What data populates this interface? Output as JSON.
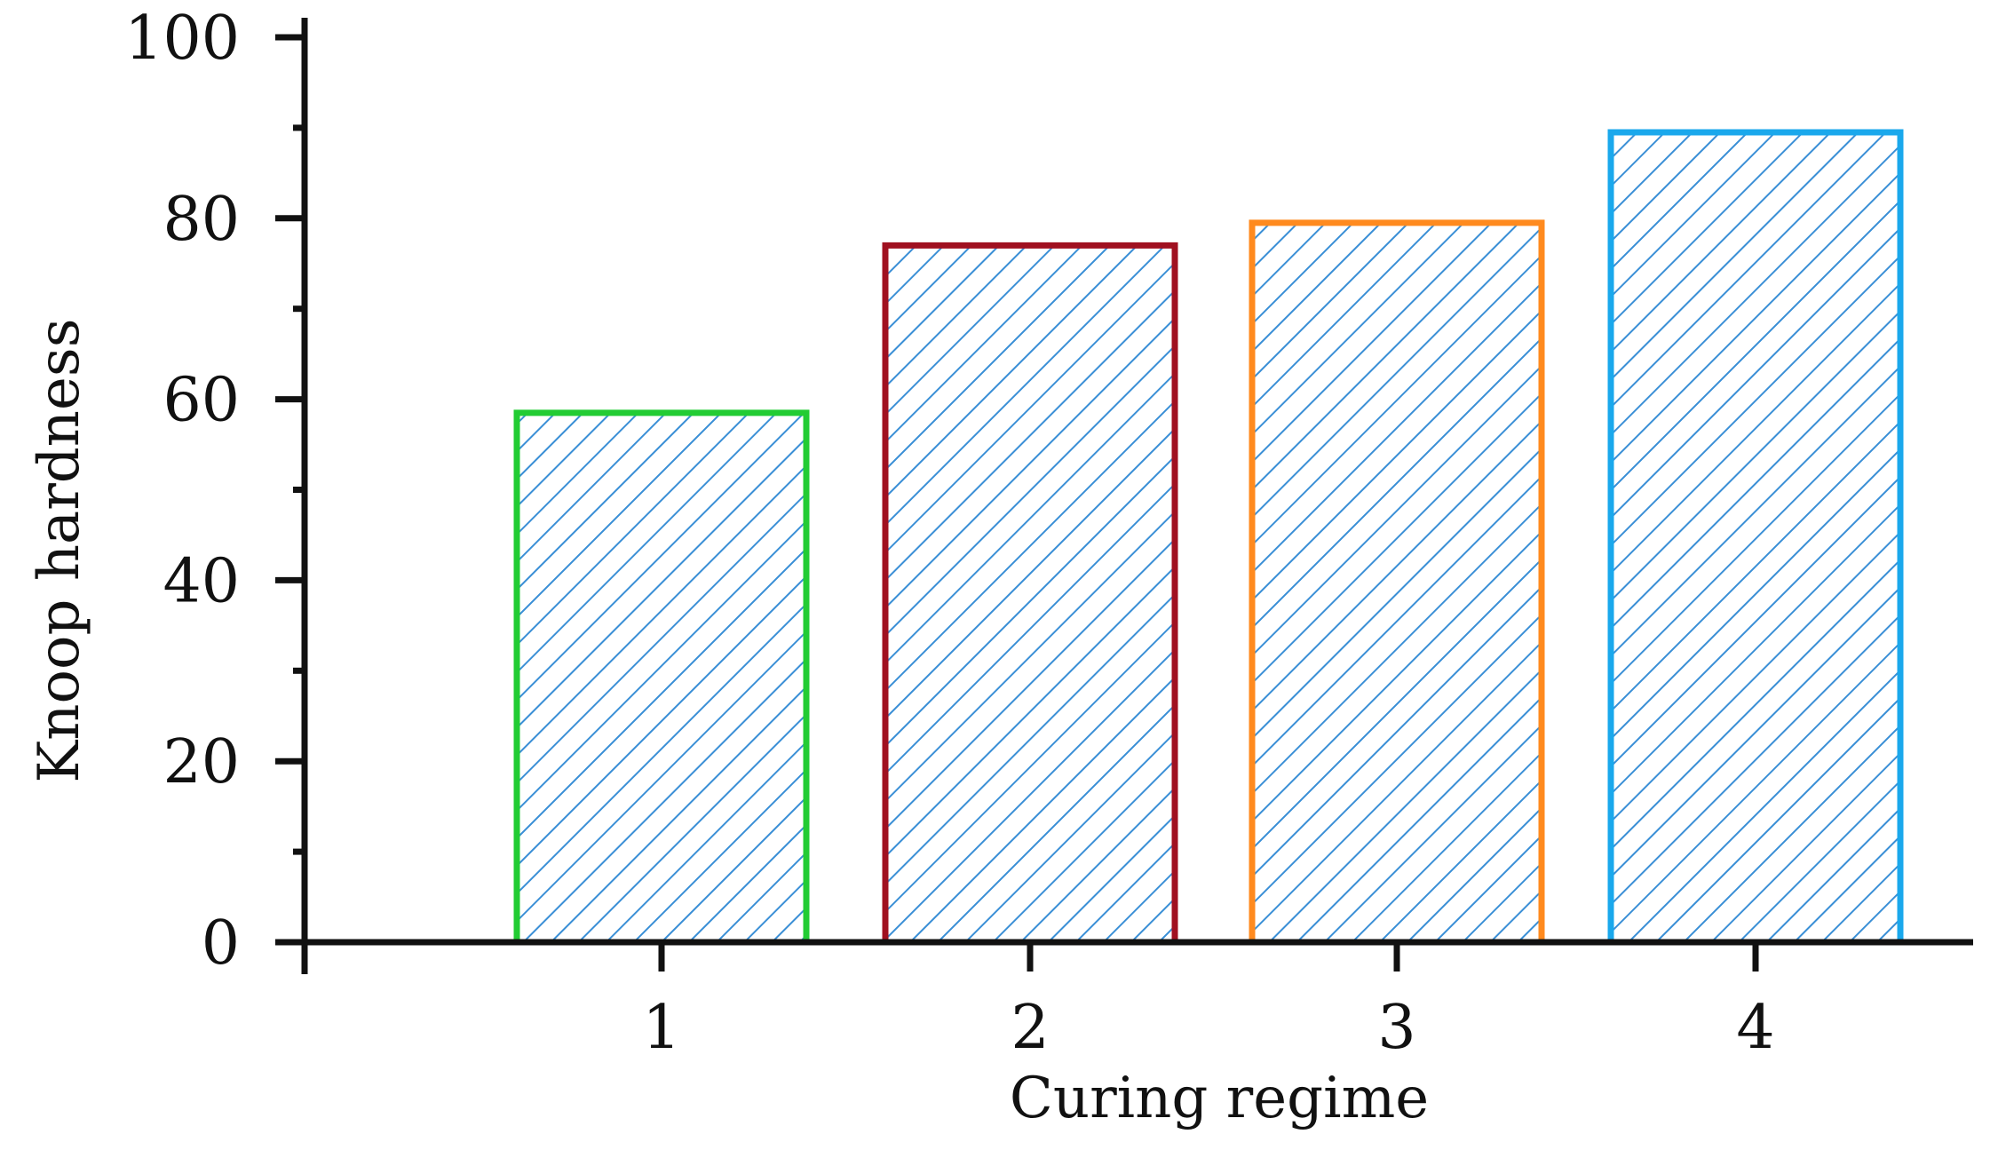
{
  "chart_data": {
    "type": "bar",
    "title": "",
    "xlabel": "Curing regime",
    "ylabel": "Knoop hardness",
    "categories": [
      "1",
      "2",
      "3",
      "4"
    ],
    "values": [
      58.5,
      77,
      79.5,
      89.5
    ],
    "ylim": [
      0,
      100
    ],
    "yticks": [
      0,
      20,
      40,
      60,
      80,
      100
    ],
    "grid": false,
    "legend": "none",
    "fill_pattern": "diagonal-hatch",
    "hatch_color": "#3a8fd6",
    "bar_edge_colors": [
      "#22cc33",
      "#a01020",
      "#ff8a1e",
      "#1aa8ec"
    ]
  }
}
